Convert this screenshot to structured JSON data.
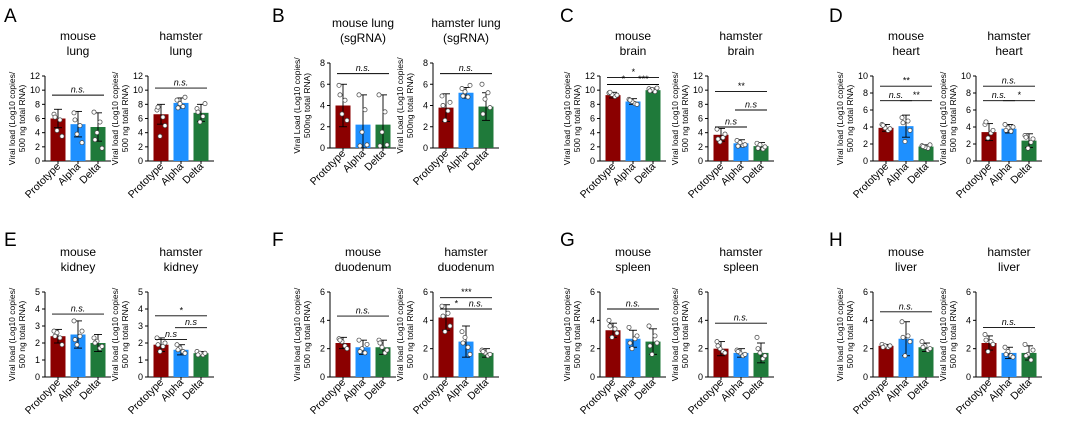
{
  "colors": {
    "prototype": "#8b0000",
    "alpha": "#1e90ff",
    "delta": "#1f7a3a",
    "axis": "#000000",
    "point": "#ffffff"
  },
  "chart_data": [
    {
      "type": "bar",
      "panel": "A",
      "title": [
        "mouse",
        "lung"
      ],
      "ylabel": [
        "Viral load (Log10 copies/",
        "500 ng total RNA)"
      ],
      "categories": [
        "Prototype",
        "Alpha",
        "Delta"
      ],
      "values": [
        6.0,
        5.2,
        4.8
      ],
      "errors": [
        1.3,
        1.8,
        2.0
      ],
      "points": [
        [
          6.6,
          5.8,
          4.3,
          3.5,
          6.2
        ],
        [
          6.8,
          5.0,
          3.8,
          2.6,
          5.8
        ],
        [
          6.9,
          5.5,
          4.0,
          1.8,
          3.0
        ]
      ],
      "ylim": [
        0,
        12
      ],
      "yticks": [
        0,
        2,
        4,
        6,
        8,
        10,
        12
      ],
      "sig": [
        {
          "from": 0,
          "to": 2,
          "y": 9.3,
          "label": "n.s."
        }
      ]
    },
    {
      "type": "bar",
      "panel": "A",
      "title": [
        "hamster",
        "lung"
      ],
      "ylabel": [
        "Viral load (Log10 copies/",
        "500 ng total RNA)"
      ],
      "categories": [
        "Prototype",
        "Alpha",
        "Delta"
      ],
      "values": [
        6.6,
        8.2,
        6.8
      ],
      "errors": [
        1.4,
        0.7,
        1.2
      ],
      "points": [
        [
          7.2,
          6.2,
          3.5,
          5.0,
          7.6
        ],
        [
          8.6,
          7.7,
          8.1,
          9.0,
          7.5
        ],
        [
          7.4,
          6.3,
          5.5,
          8.1,
          6.9
        ]
      ],
      "ylim": [
        0,
        12
      ],
      "yticks": [
        0,
        2,
        4,
        6,
        8,
        10,
        12
      ],
      "sig": [
        {
          "from": 0,
          "to": 2,
          "y": 10.3,
          "label": "n.s."
        }
      ]
    },
    {
      "type": "bar",
      "panel": "B",
      "title": [
        "mouse lung",
        "(sgRNA)"
      ],
      "ylabel": [
        "Viral Load (Log10 copies/",
        "500ng total RNA)"
      ],
      "categories": [
        "Prototype",
        "Alpha",
        "Delta"
      ],
      "values": [
        4.0,
        2.2,
        2.2
      ],
      "errors": [
        2.0,
        2.8,
        2.8
      ],
      "points": [
        [
          5.9,
          4.5,
          3.2,
          2.6,
          5.0
        ],
        [
          5.0,
          3.6,
          1.5,
          0.3,
          0.2
        ],
        [
          5.0,
          3.4,
          1.5,
          0.3,
          0.2
        ]
      ],
      "ylim": [
        0,
        8
      ],
      "yticks": [
        0,
        2,
        4,
        6,
        8
      ],
      "sig": [
        {
          "from": 0,
          "to": 2,
          "y": 7.0,
          "label": "n.s."
        }
      ]
    },
    {
      "type": "bar",
      "panel": "B",
      "title": [
        "hamster lung",
        "(sgRNA)"
      ],
      "ylabel": [
        "Viral Load (Log10 copies/",
        "500ng total RNA)"
      ],
      "categories": [
        "Prototype",
        "Alpha",
        "Delta"
      ],
      "values": [
        3.8,
        5.2,
        3.9
      ],
      "errors": [
        1.3,
        0.5,
        1.3
      ],
      "points": [
        [
          4.9,
          3.5,
          2.6,
          4.3,
          4.0
        ],
        [
          5.6,
          4.8,
          5.3,
          5.9,
          4.9
        ],
        [
          6.0,
          5.2,
          4.6,
          3.8,
          3.2
        ]
      ],
      "ylim": [
        0,
        8
      ],
      "yticks": [
        0,
        2,
        4,
        6,
        8
      ],
      "sig": [
        {
          "from": 0,
          "to": 2,
          "y": 7.0,
          "label": "n.s."
        }
      ]
    },
    {
      "type": "bar",
      "panel": "C",
      "title": [
        "mouse",
        "brain"
      ],
      "ylabel": [
        "Viral load (Log10 copies/",
        "500 ng total RNA)"
      ],
      "categories": [
        "Prototype",
        "Alpha",
        "Delta"
      ],
      "values": [
        9.3,
        8.4,
        10.0
      ],
      "errors": [
        0.4,
        0.4,
        0.3
      ],
      "points": [
        [
          9.6,
          9.1,
          9.4,
          9.3,
          9.7
        ],
        [
          8.7,
          8.1,
          8.4,
          8.0,
          8.6
        ],
        [
          10.2,
          9.8,
          10.1,
          10.3,
          9.9
        ]
      ],
      "ylim": [
        0,
        12
      ],
      "yticks": [
        0,
        2,
        4,
        6,
        8,
        10,
        12
      ],
      "sig": [
        {
          "from": 0,
          "to": 2,
          "y": 11.8,
          "label": "*"
        },
        {
          "from": 0,
          "to": 1,
          "y": 10.8,
          "label": "*"
        },
        {
          "from": 1,
          "to": 2,
          "y": 10.8,
          "label": "***"
        }
      ]
    },
    {
      "type": "bar",
      "panel": "C",
      "title": [
        "hamster",
        "brain"
      ],
      "ylabel": [
        "Viral load (Log10 copies/",
        "500 ng total RNA)"
      ],
      "categories": [
        "Prototype",
        "Alpha",
        "Delta"
      ],
      "values": [
        3.7,
        2.5,
        2.1
      ],
      "errors": [
        0.9,
        0.5,
        0.5
      ],
      "points": [
        [
          4.5,
          3.3,
          2.7,
          3.8,
          3.1
        ],
        [
          2.9,
          2.2,
          2.6,
          2.3,
          2.1
        ],
        [
          2.5,
          1.7,
          2.3,
          2.0,
          1.8
        ]
      ],
      "ylim": [
        0,
        12
      ],
      "yticks": [
        0,
        2,
        4,
        6,
        8,
        10,
        12
      ],
      "sig": [
        {
          "from": 0,
          "to": 2,
          "y": 9.8,
          "label": "**"
        },
        {
          "from": 1,
          "to": 2,
          "y": 7.2,
          "label": "n.s"
        },
        {
          "from": 0,
          "to": 1,
          "y": 4.8,
          "label": "n.s"
        }
      ]
    },
    {
      "type": "bar",
      "panel": "D",
      "title": [
        "mouse",
        "heart"
      ],
      "ylabel": [
        "Viral load (Log10 copies/",
        "500 ng total RNA)"
      ],
      "categories": [
        "Prototype",
        "Alpha",
        "Delta"
      ],
      "values": [
        3.9,
        4.1,
        1.7
      ],
      "errors": [
        0.4,
        1.3,
        0.2
      ],
      "points": [
        [
          4.3,
          3.6,
          3.9,
          3.8,
          4.2
        ],
        [
          5.1,
          4.7,
          2.3,
          3.6,
          4.5
        ],
        [
          1.8,
          1.5,
          1.6,
          1.9,
          1.7
        ]
      ],
      "ylim": [
        0,
        10
      ],
      "yticks": [
        0,
        2,
        4,
        6,
        8,
        10
      ],
      "sig": [
        {
          "from": 0,
          "to": 2,
          "y": 8.8,
          "label": "**"
        },
        {
          "from": 0,
          "to": 1,
          "y": 7.1,
          "label": "n.s."
        },
        {
          "from": 1,
          "to": 2,
          "y": 7.1,
          "label": "**"
        }
      ]
    },
    {
      "type": "bar",
      "panel": "D",
      "title": [
        "hamster",
        "heart"
      ],
      "ylabel": [
        "Viral load (Log10 copies/",
        "500 ng total RNA)"
      ],
      "categories": [
        "Prototype",
        "Alpha",
        "Delta"
      ],
      "values": [
        3.4,
        3.8,
        2.4
      ],
      "errors": [
        1.0,
        0.5,
        0.8
      ],
      "points": [
        [
          4.3,
          3.3,
          2.7,
          3.6,
          4.6
        ],
        [
          4.3,
          3.5,
          3.9,
          4.0,
          3.6
        ],
        [
          3.0,
          2.2,
          1.5,
          2.6,
          2.8
        ]
      ],
      "ylim": [
        0,
        10
      ],
      "yticks": [
        0,
        2,
        4,
        6,
        8,
        10
      ],
      "sig": [
        {
          "from": 0,
          "to": 2,
          "y": 8.8,
          "label": "n.s."
        },
        {
          "from": 0,
          "to": 1,
          "y": 7.1,
          "label": "n.s."
        },
        {
          "from": 1,
          "to": 2,
          "y": 7.1,
          "label": "*"
        }
      ]
    },
    {
      "type": "bar",
      "panel": "E",
      "title": [
        "mouse",
        "kidney"
      ],
      "ylabel": [
        "Viral load (Log10 copies/",
        "500 ng total RNA)"
      ],
      "categories": [
        "Prototype",
        "Alpha",
        "Delta"
      ],
      "values": [
        2.4,
        2.5,
        2.0
      ],
      "errors": [
        0.4,
        0.8,
        0.5
      ],
      "points": [
        [
          2.7,
          2.3,
          2.6,
          1.9,
          2.4
        ],
        [
          3.3,
          2.4,
          1.9,
          2.7,
          2.2
        ],
        [
          2.3,
          1.7,
          2.1,
          1.8,
          2.0
        ]
      ],
      "ylim": [
        0,
        5
      ],
      "yticks": [
        0,
        1,
        2,
        3,
        4,
        5
      ],
      "sig": [
        {
          "from": 0,
          "to": 2,
          "y": 3.7,
          "label": "n.s."
        }
      ]
    },
    {
      "type": "bar",
      "panel": "E",
      "title": [
        "hamster",
        "kidney"
      ],
      "ylabel": [
        "Viral load (Log10 copies/",
        "500 ng total RNA)"
      ],
      "categories": [
        "Prototype",
        "Alpha",
        "Delta"
      ],
      "values": [
        1.9,
        1.6,
        1.4
      ],
      "errors": [
        0.4,
        0.3,
        0.1
      ],
      "points": [
        [
          2.3,
          1.8,
          1.5,
          2.0,
          1.9
        ],
        [
          1.9,
          1.5,
          1.7,
          1.4,
          1.6
        ],
        [
          1.5,
          1.3,
          1.4,
          1.4,
          1.3
        ]
      ],
      "ylim": [
        0,
        5
      ],
      "yticks": [
        0,
        1,
        2,
        3,
        4,
        5
      ],
      "sig": [
        {
          "from": 0,
          "to": 2,
          "y": 3.6,
          "label": "*"
        },
        {
          "from": 1,
          "to": 2,
          "y": 2.9,
          "label": "n.s"
        },
        {
          "from": 0,
          "to": 1,
          "y": 2.2,
          "label": "n.s"
        }
      ]
    },
    {
      "type": "bar",
      "panel": "F",
      "title": [
        "mouse",
        "duodenum"
      ],
      "ylabel": [
        "Viral load (Log10 copies/",
        "500 ng total RNA)"
      ],
      "categories": [
        "Prototype",
        "Alpha",
        "Delta"
      ],
      "values": [
        2.4,
        2.1,
        2.1
      ],
      "errors": [
        0.4,
        0.5,
        0.5
      ],
      "points": [
        [
          2.7,
          2.2,
          2.5,
          2.0,
          2.6
        ],
        [
          2.6,
          1.7,
          2.0,
          2.3,
          1.8
        ],
        [
          2.6,
          1.7,
          2.1,
          1.9,
          2.4
        ]
      ],
      "ylim": [
        0,
        6
      ],
      "yticks": [
        0,
        2,
        4,
        6
      ],
      "sig": [
        {
          "from": 0,
          "to": 2,
          "y": 4.3,
          "label": "n.s."
        }
      ]
    },
    {
      "type": "bar",
      "panel": "F",
      "title": [
        "hamster",
        "duodenum"
      ],
      "ylabel": [
        "Viral load (Log10 copies/",
        "500 ng total RNA)"
      ],
      "categories": [
        "Prototype",
        "Alpha",
        "Delta"
      ],
      "values": [
        4.2,
        2.5,
        1.7
      ],
      "errors": [
        0.9,
        1.1,
        0.3
      ],
      "points": [
        [
          5.0,
          4.5,
          3.2,
          3.6,
          4.3
        ],
        [
          3.2,
          2.1,
          2.8,
          1.6,
          2.4
        ],
        [
          1.9,
          1.5,
          1.7,
          1.6,
          1.8
        ]
      ],
      "ylim": [
        0,
        6
      ],
      "yticks": [
        0,
        2,
        4,
        6
      ],
      "sig": [
        {
          "from": 0,
          "to": 2,
          "y": 5.6,
          "label": "***"
        },
        {
          "from": 0,
          "to": 1,
          "y": 4.8,
          "label": "*"
        },
        {
          "from": 1,
          "to": 2,
          "y": 4.8,
          "label": "n.s."
        }
      ]
    },
    {
      "type": "bar",
      "panel": "G",
      "title": [
        "mouse",
        "spleen"
      ],
      "ylabel": [
        "Viral load (Log10 copies/",
        "500 ng total RNA)"
      ],
      "categories": [
        "Prototype",
        "Alpha",
        "Delta"
      ],
      "values": [
        3.3,
        2.7,
        2.5
      ],
      "errors": [
        0.5,
        0.6,
        0.9
      ],
      "points": [
        [
          4.0,
          3.4,
          2.8,
          3.1,
          3.6
        ],
        [
          3.5,
          2.7,
          2.0,
          2.9,
          2.4
        ],
        [
          3.6,
          2.9,
          1.6,
          2.4,
          2.2
        ]
      ],
      "ylim": [
        0,
        6
      ],
      "yticks": [
        0,
        2,
        4,
        6
      ],
      "sig": [
        {
          "from": 0,
          "to": 2,
          "y": 4.8,
          "label": "n.s."
        }
      ]
    },
    {
      "type": "bar",
      "panel": "G",
      "title": [
        "hamster",
        "spleen"
      ],
      "ylabel": [
        "Viral load (Log10 copies/",
        "500 ng total RNA)"
      ],
      "categories": [
        "Prototype",
        "Alpha",
        "Delta"
      ],
      "values": [
        2.0,
        1.7,
        1.7
      ],
      "errors": [
        0.5,
        0.3,
        0.7
      ],
      "points": [
        [
          2.5,
          1.8,
          2.0,
          1.7,
          2.2
        ],
        [
          1.9,
          1.5,
          1.7,
          1.6,
          1.8
        ],
        [
          2.8,
          1.3,
          1.7,
          1.5,
          2.0
        ]
      ],
      "ylim": [
        0,
        6
      ],
      "yticks": [
        0,
        2,
        4,
        6
      ],
      "sig": [
        {
          "from": 0,
          "to": 2,
          "y": 3.8,
          "label": "n.s."
        }
      ]
    },
    {
      "type": "bar",
      "panel": "H",
      "title": [
        "mouse",
        "liver"
      ],
      "ylabel": [
        "Viral load (Log10 copies/",
        "500 ng total RNA)"
      ],
      "categories": [
        "Prototype",
        "Alpha",
        "Delta"
      ],
      "values": [
        2.2,
        2.7,
        2.1
      ],
      "errors": [
        0.1,
        1.2,
        0.3
      ],
      "points": [
        [
          2.3,
          2.1,
          2.2,
          2.2,
          2.1
        ],
        [
          3.9,
          2.9,
          1.5,
          2.5,
          2.8
        ],
        [
          2.5,
          1.9,
          2.2,
          2.0,
          2.1
        ]
      ],
      "ylim": [
        0,
        6
      ],
      "yticks": [
        0,
        2,
        4,
        6
      ],
      "sig": [
        {
          "from": 0,
          "to": 2,
          "y": 4.6,
          "label": "n.s."
        }
      ]
    },
    {
      "type": "bar",
      "panel": "H",
      "title": [
        "hamster",
        "liver"
      ],
      "ylabel": [
        "Viral load (Log10 copies/",
        "500 ng total RNA)"
      ],
      "categories": [
        "Prototype",
        "Alpha",
        "Delta"
      ],
      "values": [
        2.4,
        1.7,
        1.7
      ],
      "errors": [
        0.5,
        0.4,
        0.5
      ],
      "points": [
        [
          3.0,
          2.5,
          1.8,
          2.3,
          2.6
        ],
        [
          2.1,
          1.5,
          1.8,
          1.4,
          1.6
        ],
        [
          2.3,
          1.2,
          1.6,
          1.9,
          1.5
        ]
      ],
      "ylim": [
        0,
        6
      ],
      "yticks": [
        0,
        2,
        4,
        6
      ],
      "sig": [
        {
          "from": 0,
          "to": 2,
          "y": 3.5,
          "label": "n.s."
        }
      ]
    }
  ]
}
